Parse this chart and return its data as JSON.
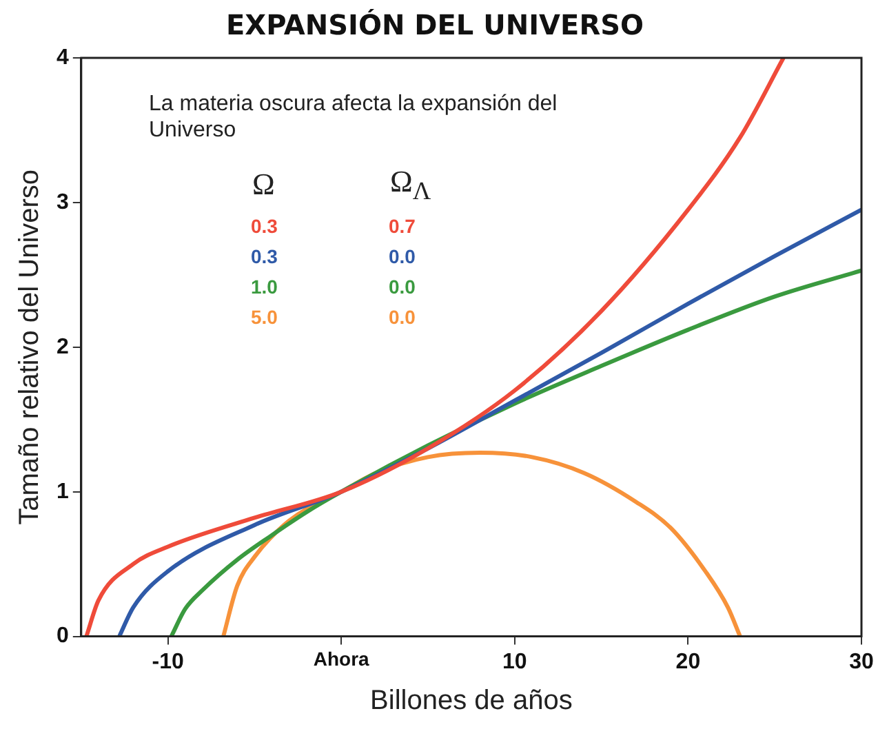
{
  "chart_data": {
    "type": "line",
    "title": "EXPANSIÓN DEL UNIVERSO",
    "xlabel": "Billones de años",
    "ylabel": "Tamaño relativo del Universo",
    "annotations": [
      "La materia oscura afecta la expansión del Universo",
      "Ω",
      "Ω$_{Λ}$"
    ],
    "series": [
      {
        "name": "0.3 0.7",
        "color": "#ef4b3a",
        "x": [
          -14.7,
          -14,
          -12,
          -10,
          -5,
          0,
          5,
          10,
          15,
          20,
          23,
          25.5
        ],
        "values": [
          0,
          0.25,
          0.5,
          0.62,
          0.82,
          1,
          1.3,
          1.7,
          2.25,
          2.95,
          3.45,
          4
        ]
      },
      {
        "name": "0.3 0.0",
        "color": "#2f5aa8",
        "x": [
          -12.8,
          -12,
          -10,
          -5,
          0,
          5,
          10,
          15,
          20,
          25,
          30
        ],
        "values": [
          0,
          0.2,
          0.45,
          0.77,
          1,
          1.3,
          1.63,
          1.96,
          2.3,
          2.63,
          2.95
        ]
      },
      {
        "name": "1.0 0.0",
        "color": "#3a9a3f",
        "x": [
          -9.8,
          -9,
          -8,
          -6,
          -4,
          -2,
          0,
          5,
          10,
          15,
          20,
          25,
          30
        ],
        "values": [
          0,
          0.19,
          0.32,
          0.53,
          0.7,
          0.86,
          1,
          1.32,
          1.61,
          1.87,
          2.12,
          2.35,
          2.53
        ]
      },
      {
        "name": "5.0 0.0",
        "color": "#f7923a",
        "x": [
          -6.8,
          -6,
          -5,
          -3,
          0,
          2,
          5,
          8,
          11,
          14,
          17,
          19,
          21,
          22.3,
          23
        ],
        "values": [
          0,
          0.35,
          0.55,
          0.8,
          1,
          1.13,
          1.24,
          1.27,
          1.24,
          1.13,
          0.93,
          0.75,
          0.45,
          0.2,
          0
        ]
      }
    ],
    "xlim": [
      -15,
      30
    ],
    "xticks": [
      -10,
      {
        "value": 0,
        "label": "Ahora"
      },
      10,
      20,
      30
    ],
    "ylim": [
      0,
      4
    ],
    "yticks": [
      0,
      1,
      2,
      3,
      4
    ],
    "grid": false,
    "marker": "none",
    "line_style": "solid"
  }
}
